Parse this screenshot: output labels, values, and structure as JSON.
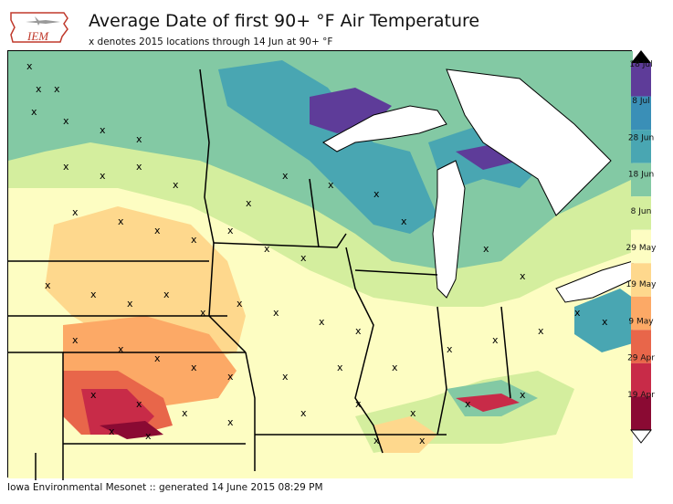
{
  "header": {
    "logo_text": "IEM",
    "title": "Average Date of first 90+ °F Air Temperature",
    "subtitle": "x denotes 2015 locations through 14 Jun at 90+ °F"
  },
  "footer": {
    "credit": "Iowa Environmental Mesonet :: generated 14 June 2015 08:29 PM"
  },
  "legend": {
    "labels": [
      "18 Jul",
      "8 Jul",
      "28 Jun",
      "18 Jun",
      "8 Jun",
      "29 May",
      "19 May",
      "9 May",
      "29 Apr",
      "19 Apr"
    ],
    "colors": [
      "#5e3c99",
      "#3a8fb7",
      "#49a6b2",
      "#83c9a4",
      "#d4ee9e",
      "#fdfdc2",
      "#fed88d",
      "#fca966",
      "#e8664a",
      "#c82b48",
      "#8a0a33"
    ]
  },
  "map": {
    "marker": "x"
  }
}
